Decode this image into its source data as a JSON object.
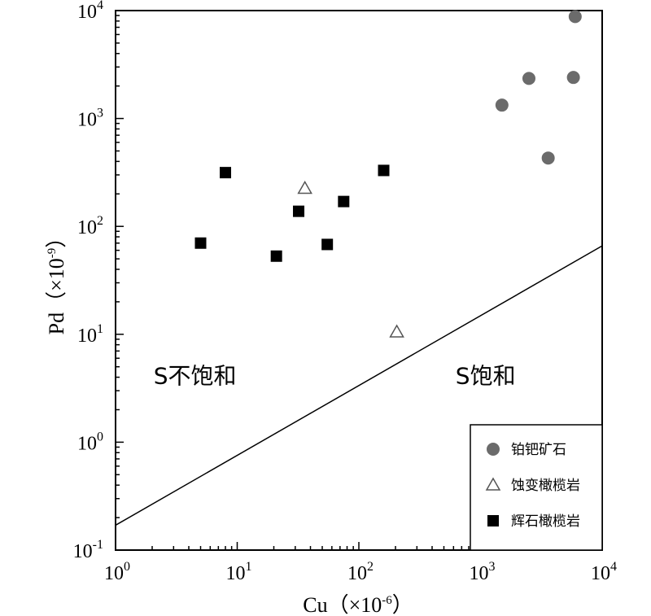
{
  "chart_data": {
    "type": "scatter",
    "x_scale": "log",
    "y_scale": "log",
    "xlim": [
      1,
      10000
    ],
    "ylim": [
      0.1,
      10000
    ],
    "xlabel": {
      "base": "Cu",
      "unit_text": "（×10",
      "unit_exp": "-6",
      "unit_close": "）"
    },
    "ylabel": {
      "base": "Pd",
      "unit_text": "（×10",
      "unit_exp": "-9",
      "unit_close": "）"
    },
    "x_ticks": [
      {
        "value": 1,
        "base": "10",
        "exp": "0"
      },
      {
        "value": 10,
        "base": "10",
        "exp": "1"
      },
      {
        "value": 100,
        "base": "10",
        "exp": "2"
      },
      {
        "value": 1000,
        "base": "10",
        "exp": "3"
      },
      {
        "value": 10000,
        "base": "10",
        "exp": "4"
      }
    ],
    "y_ticks": [
      {
        "value": 0.1,
        "base": "10",
        "exp": "-1"
      },
      {
        "value": 1,
        "base": "10",
        "exp": "0"
      },
      {
        "value": 10,
        "base": "10",
        "exp": "1"
      },
      {
        "value": 100,
        "base": "10",
        "exp": "2"
      },
      {
        "value": 1000,
        "base": "10",
        "exp": "3"
      },
      {
        "value": 10000,
        "base": "10",
        "exp": "4"
      }
    ],
    "boundary_line": {
      "from": [
        1,
        0.17
      ],
      "to": [
        10000,
        66
      ]
    },
    "region_labels": [
      {
        "text": "S不饱和",
        "at": [
          4.5,
          3.5
        ]
      },
      {
        "text": "S饱和",
        "at": [
          1100,
          3.5
        ]
      }
    ],
    "series": [
      {
        "name": "铂钯矿石",
        "marker": "circle",
        "color": "#6b6b6b",
        "points": [
          {
            "x": 6000,
            "y": 8800
          },
          {
            "x": 2500,
            "y": 2350
          },
          {
            "x": 5800,
            "y": 2400
          },
          {
            "x": 1500,
            "y": 1330
          },
          {
            "x": 3600,
            "y": 430
          }
        ]
      },
      {
        "name": "蚀变橄榄岩",
        "marker": "triangle-open",
        "color": "#555555",
        "points": [
          {
            "x": 36,
            "y": 225
          },
          {
            "x": 205,
            "y": 10.5
          }
        ]
      },
      {
        "name": "辉石橄榄岩",
        "marker": "square",
        "color": "#000000",
        "points": [
          {
            "x": 8,
            "y": 315
          },
          {
            "x": 160,
            "y": 330
          },
          {
            "x": 75,
            "y": 170
          },
          {
            "x": 32,
            "y": 138
          },
          {
            "x": 5,
            "y": 70
          },
          {
            "x": 55,
            "y": 68
          },
          {
            "x": 21,
            "y": 53
          }
        ]
      }
    ],
    "legend_position": "bottom-right"
  }
}
